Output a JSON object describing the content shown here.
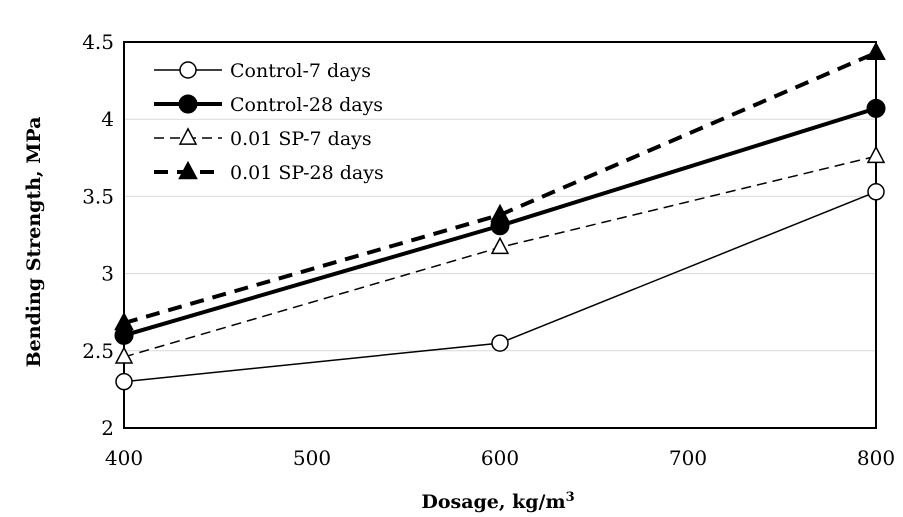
{
  "chart_data": {
    "type": "line",
    "xlabel_main": "Dosage, kg/m",
    "xlabel_sup": "3",
    "ylabel": "Bending Strength, MPa",
    "x": [
      400,
      600,
      800
    ],
    "xlim": [
      400,
      800
    ],
    "ylim": [
      2,
      4.5
    ],
    "xticks": [
      400,
      500,
      600,
      700,
      800
    ],
    "yticks": [
      2,
      2.5,
      3,
      3.5,
      4,
      4.5
    ],
    "xtick_labels": [
      "400",
      "500",
      "600",
      "700",
      "800"
    ],
    "ytick_labels": [
      "2",
      "2.5",
      "3",
      "3.5",
      "4",
      "4.5"
    ],
    "grid": "horizontal",
    "legend_position": "top-left",
    "series": [
      {
        "name": "Control-7 days",
        "values": [
          2.3,
          2.55,
          3.53
        ],
        "marker": "circle-open",
        "line": "solid-thin",
        "color": "#000000"
      },
      {
        "name": "Control-28 days",
        "values": [
          2.6,
          3.31,
          4.07
        ],
        "marker": "circle-filled",
        "line": "solid-thick",
        "color": "#000000"
      },
      {
        "name": "0.01 SP-7 days",
        "values": [
          2.46,
          3.17,
          3.76
        ],
        "marker": "triangle-open",
        "line": "dashed-thin",
        "color": "#000000"
      },
      {
        "name": "0.01 SP-28 days",
        "values": [
          2.68,
          3.38,
          4.43
        ],
        "marker": "triangle-filled",
        "line": "dashed-thick",
        "color": "#000000"
      }
    ]
  }
}
